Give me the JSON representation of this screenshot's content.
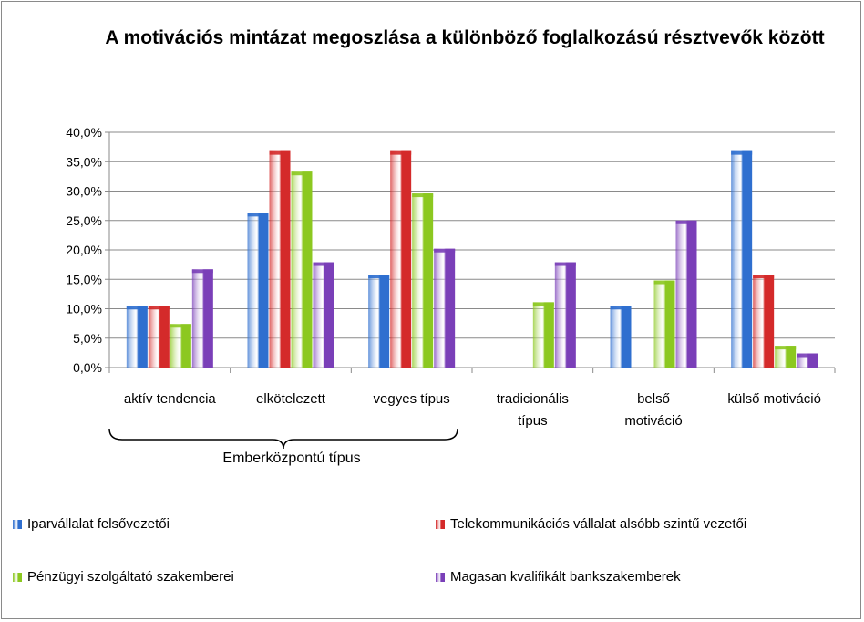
{
  "chart_data": {
    "type": "bar",
    "title": "A  motivációs mintázat megoszlása a különböző foglalkozású résztvevők között",
    "categories": [
      "aktív tendencia",
      "elkötelezett",
      "vegyes típus",
      "tradicionális típus",
      "belső motiváció",
      "külső motiváció"
    ],
    "category_lines": [
      [
        "aktív tendencia"
      ],
      [
        "elkötelezett"
      ],
      [
        "vegyes típus"
      ],
      [
        "tradicionális",
        "típus"
      ],
      [
        "belső",
        "motiváció"
      ],
      [
        "külső motiváció"
      ]
    ],
    "group_label": "Emberközpontú típus",
    "ylim": [
      0,
      0.4
    ],
    "yticks": [
      "0,0%",
      "5,0%",
      "10,0%",
      "15,0%",
      "20,0%",
      "25,0%",
      "30,0%",
      "35,0%",
      "40,0%"
    ],
    "grid": true,
    "legend_position": "bottom",
    "series": [
      {
        "name": "Iparvállalat felsővezetői",
        "color": "#2f6fcf",
        "values": [
          0.105,
          0.263,
          0.158,
          0,
          0.105,
          0.368
        ]
      },
      {
        "name": "Telekommunikációs vállalat alsóbb szintű vezetői",
        "color": "#d42a2a",
        "values": [
          0.105,
          0.368,
          0.368,
          0,
          0,
          0.158
        ]
      },
      {
        "name": "Pénzügyi szolgáltató szakemberei",
        "color": "#8cc820",
        "values": [
          0.074,
          0.333,
          0.296,
          0.111,
          0.148,
          0.037
        ]
      },
      {
        "name": "Magasan kvalifikált bankszakemberek",
        "color": "#7a3fb8",
        "values": [
          0.167,
          0.179,
          0.202,
          0.179,
          0.25,
          0.024
        ]
      }
    ]
  }
}
